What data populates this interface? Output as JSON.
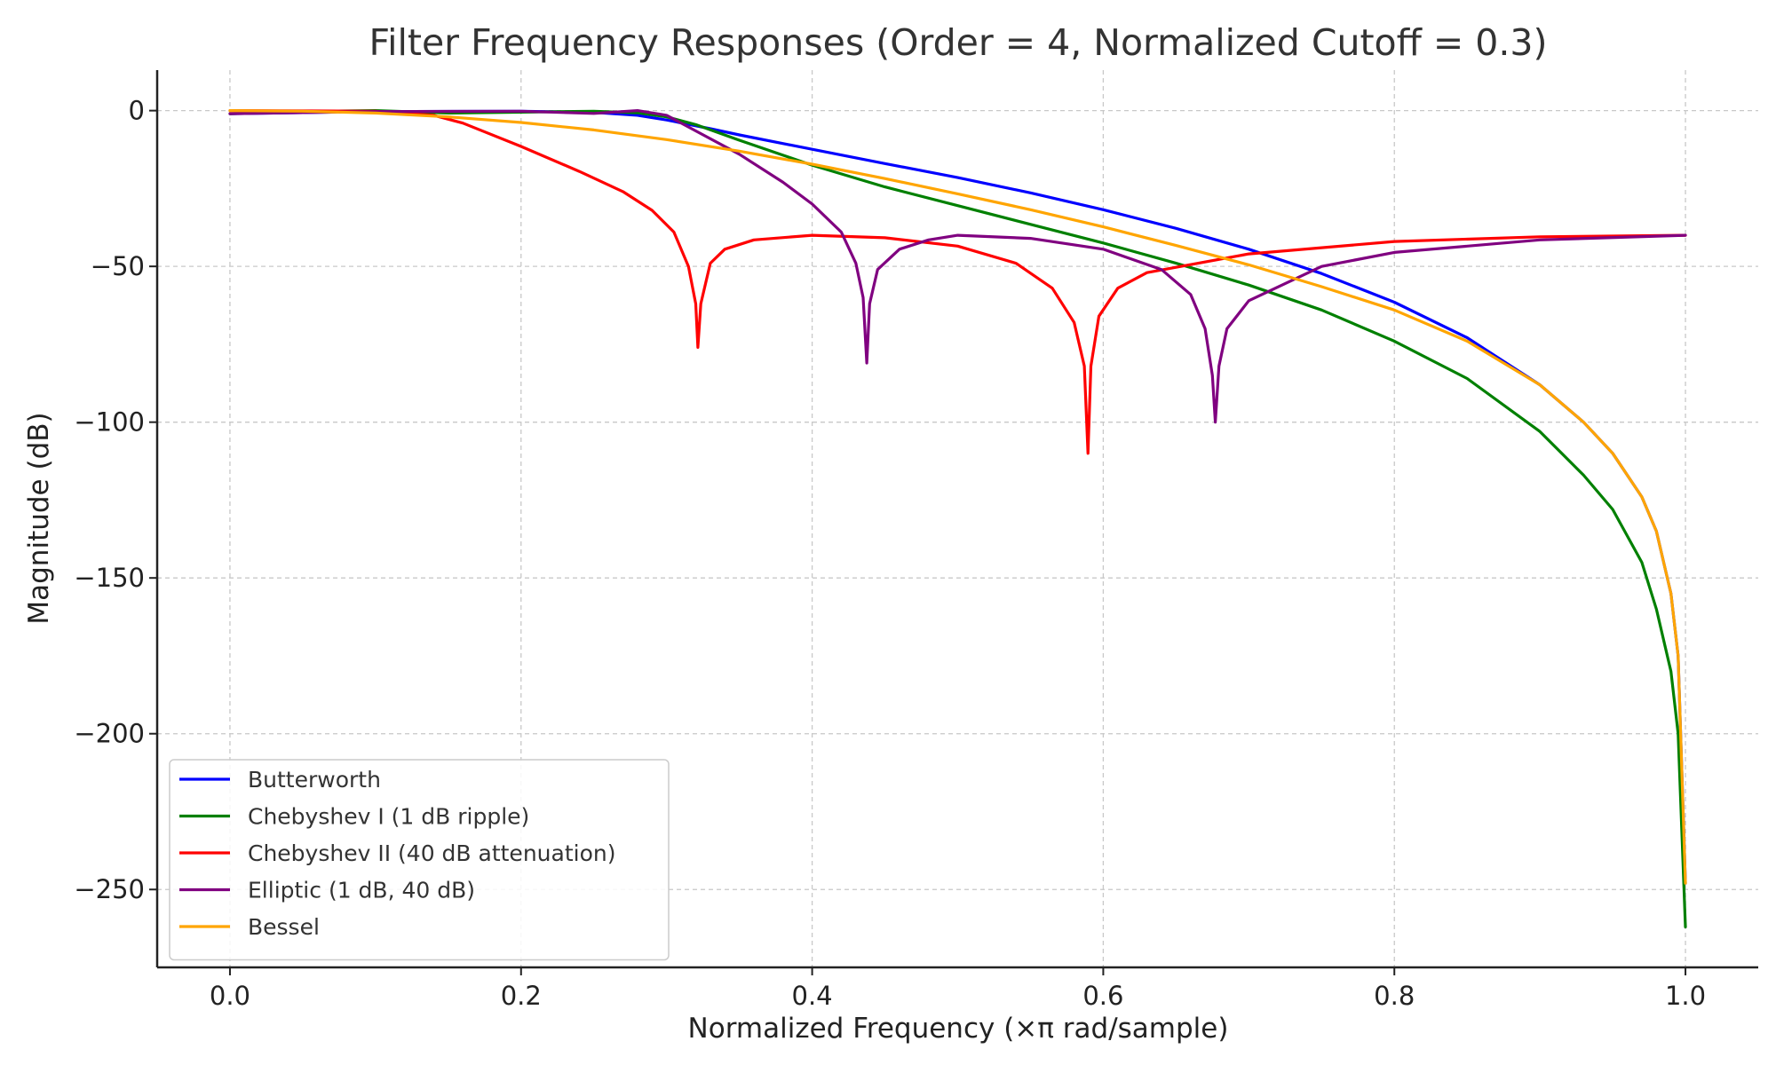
{
  "chart_data": {
    "type": "line",
    "title": "Filter Frequency Responses (Order = 4, Normalized Cutoff = 0.3)",
    "xlabel": "Normalized Frequency (×π rad/sample)",
    "ylabel": "Magnitude (dB)",
    "xlim": [
      -0.05,
      1.05
    ],
    "ylim": [
      -275,
      13
    ],
    "xticks": [
      0.0,
      0.2,
      0.4,
      0.6,
      0.8,
      1.0
    ],
    "xtick_labels": [
      "0.0",
      "0.2",
      "0.4",
      "0.6",
      "0.8",
      "1.0"
    ],
    "yticks": [
      0,
      -50,
      -100,
      -150,
      -200,
      -250
    ],
    "ytick_labels": [
      "0",
      "−50",
      "−100",
      "−150",
      "−200",
      "−250"
    ],
    "grid": true,
    "legend_position": "lower-left",
    "series": [
      {
        "name": "Butterworth",
        "color": "#0000ff",
        "x": [
          0.0,
          0.1,
          0.2,
          0.25,
          0.28,
          0.3,
          0.33,
          0.35,
          0.4,
          0.45,
          0.5,
          0.55,
          0.6,
          0.65,
          0.7,
          0.75,
          0.8,
          0.85,
          0.9,
          0.93,
          0.95,
          0.97,
          0.98,
          0.99,
          0.995,
          1.0
        ],
        "y": [
          -1.0,
          -0.3,
          -0.2,
          -0.6,
          -1.5,
          -3.0,
          -5.8,
          -7.8,
          -12.4,
          -17.0,
          -21.5,
          -26.4,
          -31.8,
          -37.8,
          -44.5,
          -52.3,
          -61.5,
          -72.9,
          -88.0,
          -100.0,
          -110.0,
          -124.0,
          -135.0,
          -155.0,
          -175.0,
          -248.0
        ]
      },
      {
        "name": "Chebyshev I (1 dB ripple)",
        "color": "#008000",
        "x": [
          0.0,
          0.05,
          0.1,
          0.15,
          0.2,
          0.25,
          0.28,
          0.3,
          0.32,
          0.35,
          0.4,
          0.45,
          0.5,
          0.55,
          0.6,
          0.65,
          0.7,
          0.75,
          0.8,
          0.85,
          0.9,
          0.93,
          0.95,
          0.97,
          0.98,
          0.99,
          0.995,
          1.0
        ],
        "y": [
          -1.0,
          -0.3,
          0.0,
          -0.8,
          -0.5,
          -0.2,
          -0.7,
          -2.0,
          -4.5,
          -9.5,
          -17.5,
          -24.5,
          -30.5,
          -36.5,
          -42.5,
          -49.0,
          -56.0,
          -64.0,
          -74.0,
          -86.0,
          -103.0,
          -117.0,
          -128.0,
          -145.0,
          -160.0,
          -180.0,
          -200.0,
          -262.0
        ]
      },
      {
        "name": "Chebyshev II (40 dB attenuation)",
        "color": "#ff0000",
        "x": [
          0.0,
          0.1,
          0.14,
          0.16,
          0.2,
          0.24,
          0.27,
          0.29,
          0.305,
          0.315,
          0.32,
          0.3215,
          0.3235,
          0.33,
          0.34,
          0.36,
          0.4,
          0.45,
          0.5,
          0.54,
          0.565,
          0.58,
          0.587,
          0.5895,
          0.5915,
          0.597,
          0.61,
          0.63,
          0.7,
          0.8,
          0.9,
          1.0
        ],
        "y": [
          0.0,
          -0.2,
          -1.5,
          -4.0,
          -11.5,
          -19.5,
          -26.0,
          -32.0,
          -39.0,
          -50.0,
          -62.0,
          -76.0,
          -62.0,
          -49.0,
          -44.5,
          -41.5,
          -40.0,
          -40.8,
          -43.5,
          -49.0,
          -57.0,
          -68.0,
          -82.0,
          -110.0,
          -82.0,
          -66.0,
          -57.0,
          -52.0,
          -46.0,
          -42.0,
          -40.5,
          -40.0
        ]
      },
      {
        "name": "Elliptic (1 dB, 40 dB)",
        "color": "#800080",
        "x": [
          0.0,
          0.1,
          0.2,
          0.25,
          0.28,
          0.3,
          0.32,
          0.35,
          0.38,
          0.4,
          0.42,
          0.43,
          0.435,
          0.4375,
          0.4395,
          0.445,
          0.46,
          0.48,
          0.5,
          0.55,
          0.6,
          0.64,
          0.66,
          0.67,
          0.675,
          0.677,
          0.6795,
          0.685,
          0.7,
          0.75,
          0.8,
          0.9,
          1.0
        ],
        "y": [
          -1.0,
          -0.3,
          -0.2,
          -0.9,
          0.0,
          -1.5,
          -6.5,
          -14.0,
          -23.0,
          -30.0,
          -39.0,
          -49.0,
          -60.0,
          -81.0,
          -62.0,
          -51.0,
          -44.5,
          -41.5,
          -40.0,
          -41.0,
          -44.5,
          -51.0,
          -59.0,
          -70.0,
          -85.0,
          -100.0,
          -82.0,
          -70.0,
          -61.0,
          -50.0,
          -45.5,
          -41.5,
          -40.0
        ]
      },
      {
        "name": "Bessel",
        "color": "#ffa500",
        "x": [
          0.0,
          0.05,
          0.1,
          0.15,
          0.2,
          0.25,
          0.3,
          0.35,
          0.4,
          0.45,
          0.5,
          0.55,
          0.6,
          0.65,
          0.7,
          0.75,
          0.8,
          0.85,
          0.9,
          0.93,
          0.95,
          0.97,
          0.98,
          0.99,
          0.995,
          1.0
        ],
        "y": [
          0.0,
          -0.2,
          -0.8,
          -2.0,
          -3.8,
          -6.2,
          -9.3,
          -13.0,
          -17.2,
          -21.8,
          -26.7,
          -31.8,
          -37.3,
          -43.3,
          -49.5,
          -56.5,
          -64.0,
          -74.0,
          -88.0,
          -100.0,
          -110.0,
          -124.0,
          -135.0,
          -155.0,
          -175.0,
          -248.0
        ]
      }
    ]
  }
}
